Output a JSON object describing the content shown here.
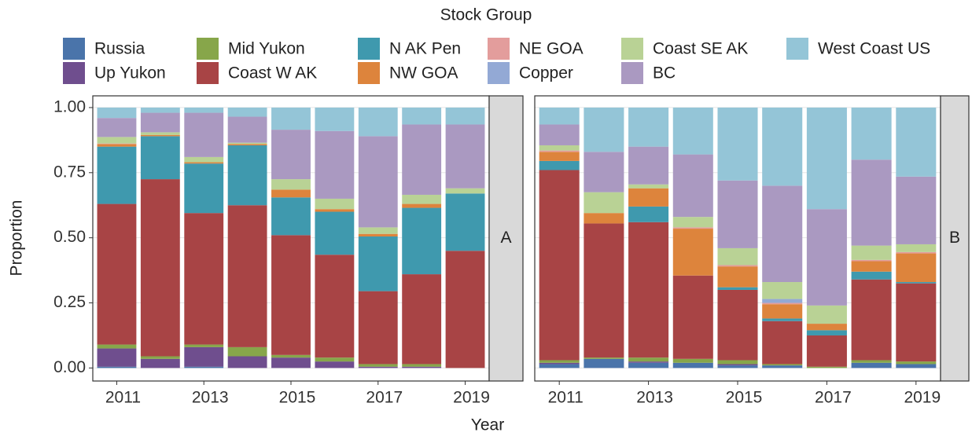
{
  "chart_data": {
    "type": "bar",
    "stacked": true,
    "legend_title": "Stock Group",
    "x_label": "Year",
    "y_label": "Proportion",
    "panels": [
      "A",
      "B"
    ],
    "x": [
      2011,
      2012,
      2013,
      2014,
      2015,
      2016,
      2017,
      2018,
      2019
    ],
    "xlim": [
      2010.45,
      2019.55
    ],
    "xticks": [
      2011,
      2013,
      2015,
      2017,
      2019
    ],
    "ylim": [
      -0.05,
      1.045
    ],
    "yticks": [
      {
        "value": 0,
        "label": "0.00"
      },
      {
        "value": 0.25,
        "label": "0.25"
      },
      {
        "value": 0.5,
        "label": "0.50"
      },
      {
        "value": 0.75,
        "label": "0.75"
      },
      {
        "value": 1,
        "label": "1.00"
      }
    ],
    "grid": true,
    "series": [
      {
        "name": "Russia",
        "color": "#4a74aa",
        "values": [
          [
            0.005,
            0,
            0.005,
            0,
            0,
            0,
            0,
            0,
            0
          ],
          [
            0.015,
            0.035,
            0.02,
            0.02,
            0.01,
            0.01,
            0,
            0.02,
            0.015
          ]
        ]
      },
      {
        "name": "Up Yukon",
        "color": "#6f4e8e",
        "values": [
          [
            0.07,
            0.035,
            0.075,
            0.045,
            0.04,
            0.025,
            0.005,
            0.005,
            0
          ],
          [
            0.005,
            0,
            0.005,
            0,
            0.005,
            0,
            0,
            0,
            0
          ]
        ]
      },
      {
        "name": "Mid Yukon",
        "color": "#87a64a",
        "values": [
          [
            0.015,
            0.01,
            0.01,
            0.035,
            0.01,
            0.015,
            0.01,
            0.01,
            0
          ],
          [
            0.01,
            0.005,
            0.015,
            0.015,
            0.015,
            0.005,
            0.005,
            0.01,
            0.01
          ]
        ]
      },
      {
        "name": "Coast W AK",
        "color": "#a84445",
        "values": [
          [
            0.54,
            0.68,
            0.505,
            0.545,
            0.46,
            0.395,
            0.28,
            0.345,
            0.45
          ],
          [
            0.73,
            0.515,
            0.52,
            0.32,
            0.27,
            0.165,
            0.12,
            0.31,
            0.3
          ]
        ]
      },
      {
        "name": "N AK Pen",
        "color": "#3f99ae",
        "values": [
          [
            0.22,
            0.165,
            0.19,
            0.23,
            0.145,
            0.165,
            0.21,
            0.255,
            0.22
          ],
          [
            0.035,
            0,
            0.06,
            0,
            0.01,
            0.01,
            0.02,
            0.03,
            0.005
          ]
        ]
      },
      {
        "name": "NW GOA",
        "color": "#dd843c",
        "values": [
          [
            0.01,
            0.005,
            0.005,
            0.005,
            0.03,
            0.01,
            0.01,
            0.015,
            0
          ],
          [
            0.035,
            0.04,
            0.07,
            0.18,
            0.08,
            0.055,
            0.025,
            0.04,
            0.11
          ]
        ]
      },
      {
        "name": "NE GOA",
        "color": "#e39d9c",
        "values": [
          [
            0.002,
            0,
            0,
            0,
            0,
            0,
            0,
            0,
            0
          ],
          [
            0.005,
            0,
            0,
            0.005,
            0.005,
            0.005,
            0,
            0.005,
            0.005
          ]
        ]
      },
      {
        "name": "Copper",
        "color": "#93a9d5",
        "values": [
          [
            0,
            0,
            0,
            0,
            0,
            0,
            0,
            0,
            0
          ],
          [
            0,
            0,
            0,
            0,
            0,
            0.015,
            0,
            0,
            0
          ]
        ]
      },
      {
        "name": "Coast SE AK",
        "color": "#b9d295",
        "values": [
          [
            0.025,
            0.01,
            0.02,
            0.005,
            0.04,
            0.04,
            0.025,
            0.035,
            0.02
          ],
          [
            0.02,
            0.08,
            0.015,
            0.04,
            0.065,
            0.065,
            0.07,
            0.055,
            0.03
          ]
        ]
      },
      {
        "name": "BC",
        "color": "#aa99c1",
        "values": [
          [
            0.073,
            0.075,
            0.17,
            0.1,
            0.19,
            0.26,
            0.35,
            0.27,
            0.245
          ],
          [
            0.08,
            0.155,
            0.145,
            0.24,
            0.26,
            0.37,
            0.37,
            0.33,
            0.26
          ]
        ]
      },
      {
        "name": "West Coast US",
        "color": "#94c5d7",
        "values": [
          [
            0.04,
            0.02,
            0.02,
            0.035,
            0.085,
            0.09,
            0.11,
            0.065,
            0.065
          ],
          [
            0.065,
            0.17,
            0.15,
            0.18,
            0.28,
            0.3,
            0.39,
            0.2,
            0.265
          ]
        ]
      }
    ]
  }
}
